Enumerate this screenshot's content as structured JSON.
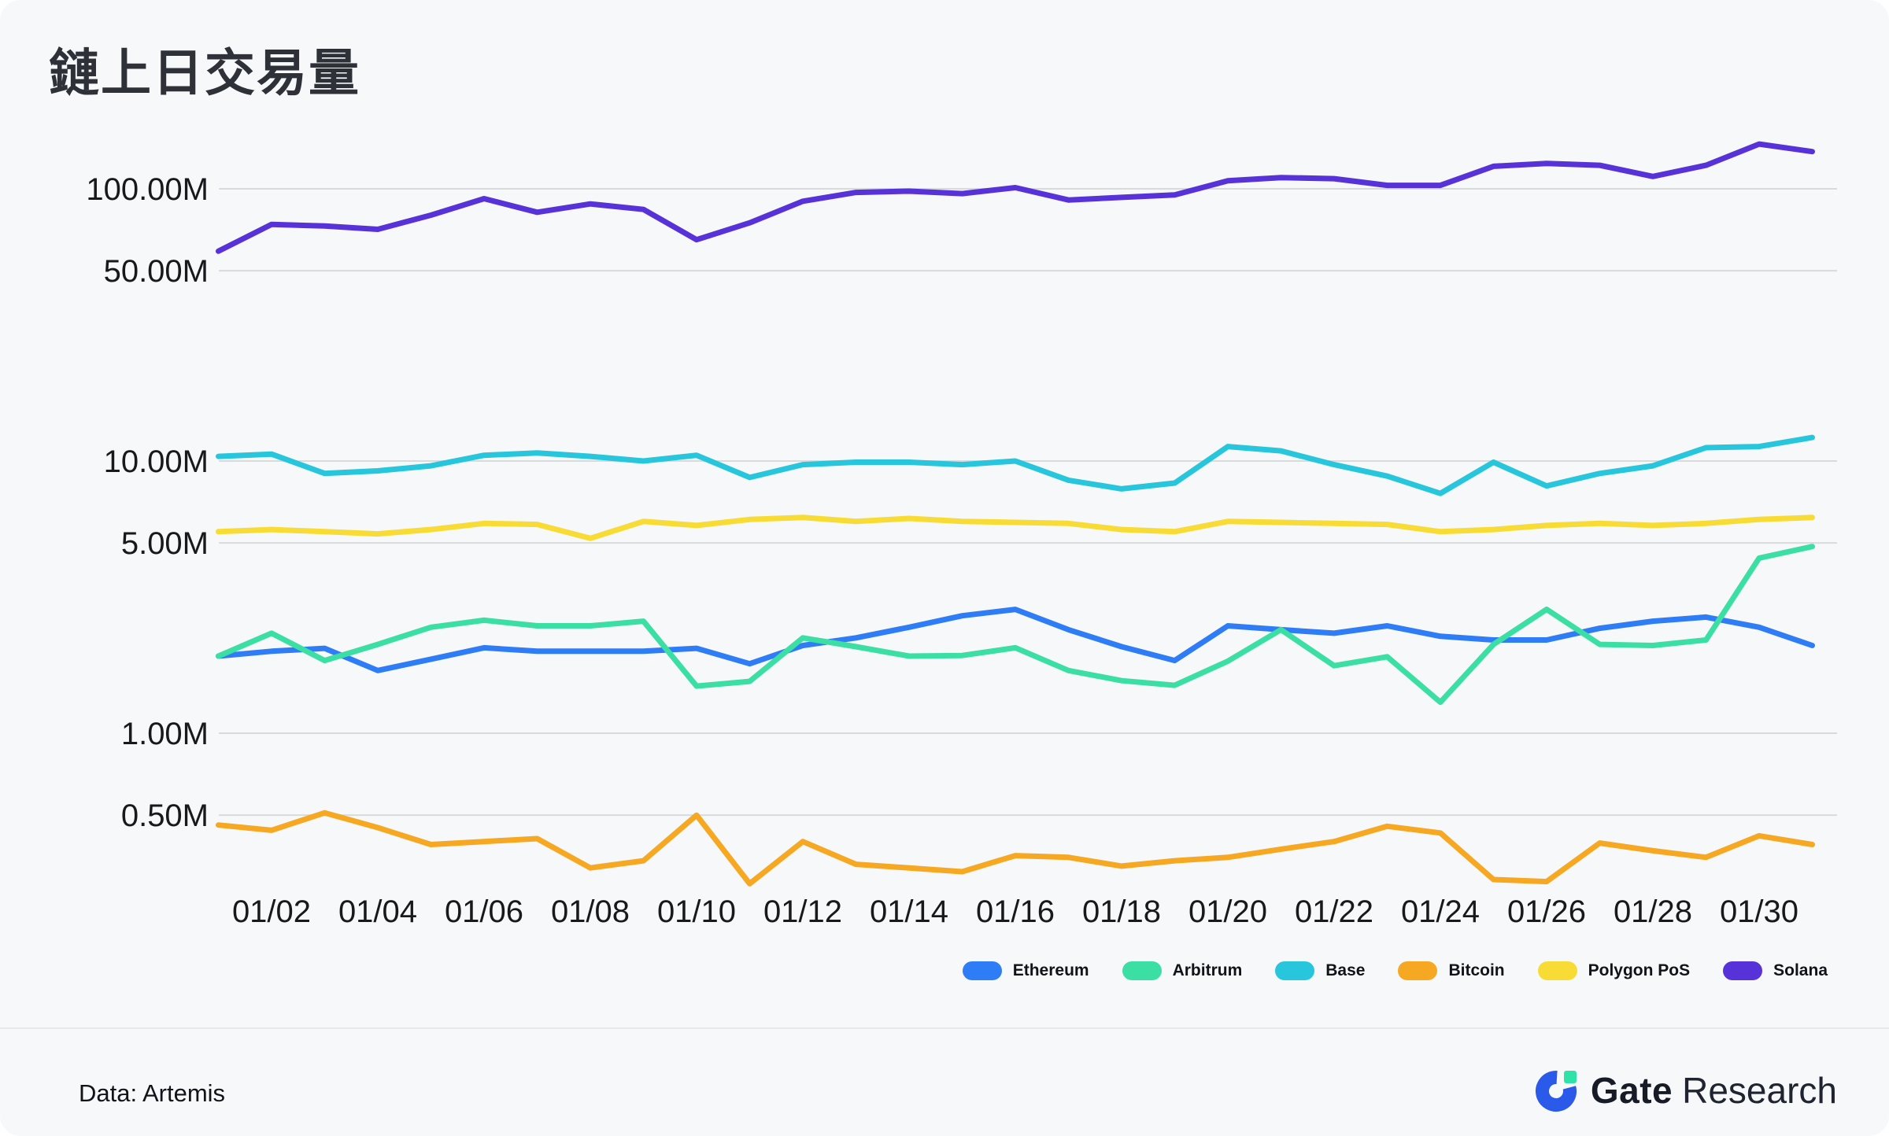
{
  "page": {
    "background": "#F7F8FA"
  },
  "title": "鏈上日交易量",
  "chart_data": {
    "type": "line",
    "y_scale": "log",
    "grid": true,
    "legend_position": "bottom-right",
    "y_unit": "M = million daily transactions",
    "ylim_m": [
      0.25,
      160
    ],
    "x": [
      "01/01",
      "01/02",
      "01/03",
      "01/04",
      "01/05",
      "01/06",
      "01/07",
      "01/08",
      "01/09",
      "01/10",
      "01/11",
      "01/12",
      "01/13",
      "01/14",
      "01/15",
      "01/16",
      "01/17",
      "01/18",
      "01/19",
      "01/20",
      "01/21",
      "01/22",
      "01/23",
      "01/24",
      "01/25",
      "01/26",
      "01/27",
      "01/28",
      "01/29",
      "01/30",
      "01/31"
    ],
    "x_tick_labels": [
      "01/02",
      "01/04",
      "01/06",
      "01/08",
      "01/10",
      "01/12",
      "01/14",
      "01/16",
      "01/18",
      "01/20",
      "01/22",
      "01/24",
      "01/26",
      "01/28",
      "01/30"
    ],
    "y_ticks": [
      {
        "label": "100.00M",
        "value": 100
      },
      {
        "label": "50.00M",
        "value": 50
      },
      {
        "label": "10.00M",
        "value": 10
      },
      {
        "label": "5.00M",
        "value": 5
      },
      {
        "label": "1.00M",
        "value": 1
      },
      {
        "label": "0.50M",
        "value": 0.5
      }
    ],
    "series": [
      {
        "name": "Ethereum",
        "color": "#2E7CF6",
        "values": [
          1.92,
          2.0,
          2.05,
          1.7,
          1.87,
          2.06,
          2.0,
          2.0,
          2.0,
          2.05,
          1.8,
          2.1,
          2.24,
          2.45,
          2.7,
          2.85,
          2.4,
          2.08,
          1.85,
          2.48,
          2.4,
          2.33,
          2.48,
          2.27,
          2.2,
          2.2,
          2.43,
          2.58,
          2.67,
          2.45,
          2.1
        ]
      },
      {
        "name": "Arbitrum",
        "color": "#3CDFA3",
        "values": [
          1.92,
          2.33,
          1.85,
          2.12,
          2.45,
          2.6,
          2.48,
          2.48,
          2.58,
          1.49,
          1.55,
          2.24,
          2.08,
          1.92,
          1.93,
          2.06,
          1.7,
          1.56,
          1.5,
          1.84,
          2.4,
          1.77,
          1.91,
          1.3,
          2.12,
          2.85,
          2.12,
          2.1,
          2.2,
          4.4,
          4.85
        ]
      },
      {
        "name": "Base",
        "color": "#27C6DC",
        "values": [
          10.4,
          10.6,
          9.0,
          9.2,
          9.6,
          10.5,
          10.7,
          10.4,
          10.0,
          10.5,
          8.7,
          9.7,
          9.9,
          9.9,
          9.7,
          10.0,
          8.5,
          7.9,
          8.3,
          11.3,
          10.9,
          9.7,
          8.8,
          7.6,
          9.9,
          8.1,
          9.0,
          9.6,
          11.2,
          11.3,
          12.2
        ]
      },
      {
        "name": "Bitcoin",
        "color": "#F7A823",
        "values": [
          0.46,
          0.44,
          0.51,
          0.45,
          0.39,
          0.4,
          0.41,
          0.32,
          0.34,
          0.5,
          0.28,
          0.4,
          0.33,
          0.32,
          0.31,
          0.355,
          0.35,
          0.325,
          0.34,
          0.35,
          0.375,
          0.4,
          0.455,
          0.43,
          0.29,
          0.285,
          0.395,
          0.37,
          0.35,
          0.42,
          0.39
        ]
      },
      {
        "name": "Polygon PoS",
        "color": "#F8DC35",
        "values": [
          5.5,
          5.6,
          5.5,
          5.4,
          5.6,
          5.9,
          5.85,
          5.2,
          6.0,
          5.8,
          6.1,
          6.2,
          6.0,
          6.15,
          6.0,
          5.95,
          5.9,
          5.6,
          5.5,
          6.0,
          5.95,
          5.9,
          5.85,
          5.5,
          5.6,
          5.8,
          5.9,
          5.8,
          5.9,
          6.1,
          6.2
        ]
      },
      {
        "name": "Solana",
        "color": "#5732D9",
        "values": [
          59,
          74,
          73,
          71,
          80,
          92,
          82,
          88,
          84,
          65,
          75,
          90,
          97,
          98,
          96,
          101,
          91,
          93,
          95,
          107,
          110,
          109,
          103,
          103,
          121,
          124,
          122,
          111,
          122,
          146,
          137
        ]
      }
    ]
  },
  "footer": {
    "source_label": "Data: Artemis",
    "brand_bold": "Gate",
    "brand_regular": "Research",
    "logo_blue": "#2B5AEA",
    "logo_green": "#2FE3A8"
  }
}
